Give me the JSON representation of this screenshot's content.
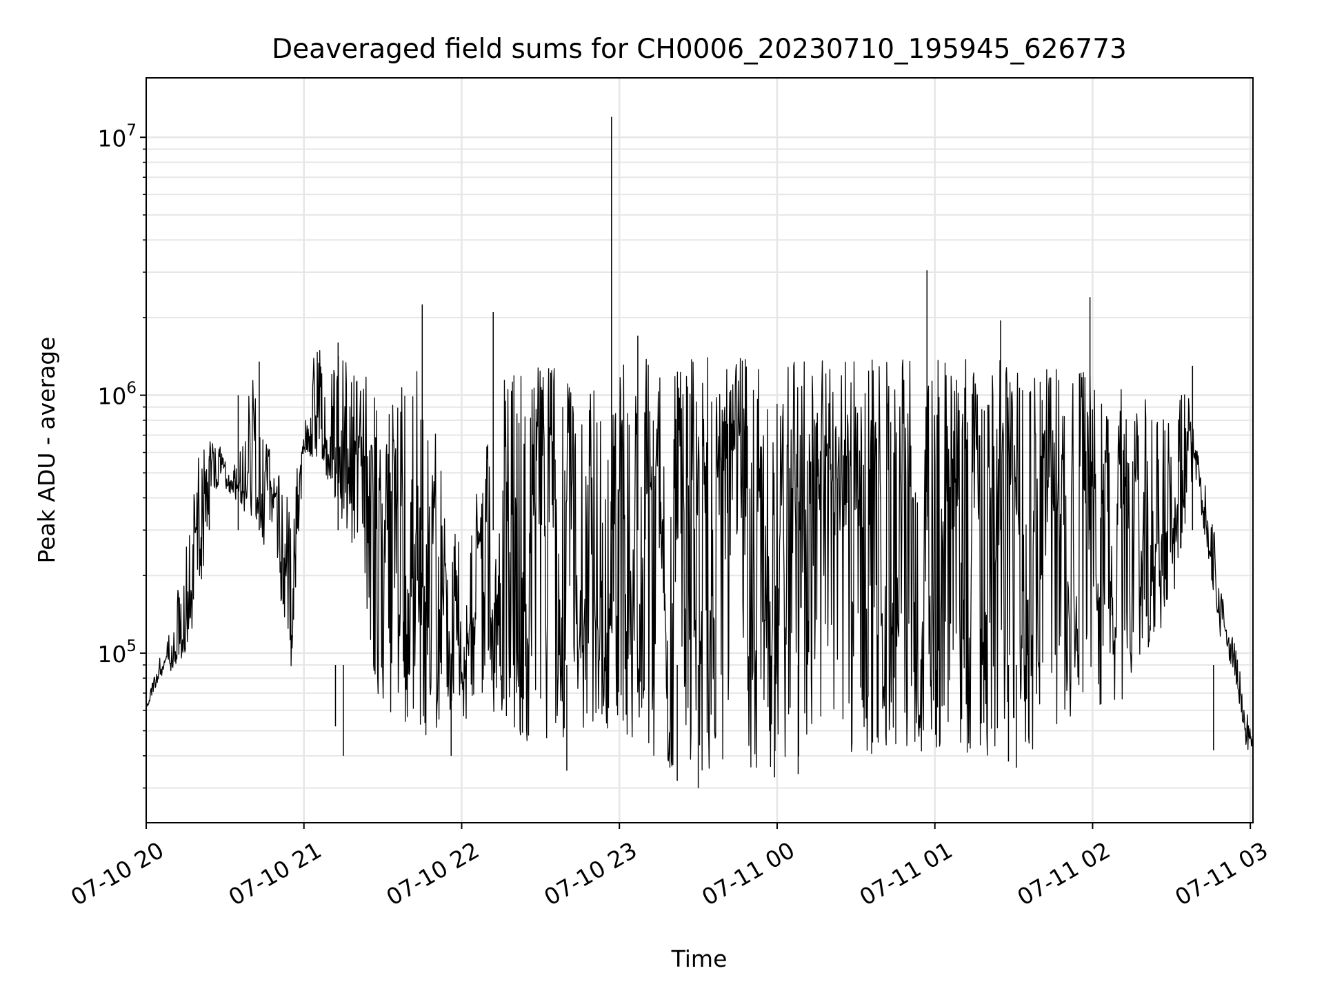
{
  "chart_data": {
    "type": "line",
    "title": "Deaveraged field sums for CH0006_20230710_195945_626773",
    "xlabel": "Time",
    "ylabel": "Peak ADU - average",
    "x_range": [
      "2023-07-10 20:00",
      "2023-07-11 03:01"
    ],
    "ylim": [
      22000,
      17000000
    ],
    "yscale": "log",
    "grid": true,
    "line_color": "#000000",
    "grid_color": "#e6e6e6",
    "x_ticks": [
      {
        "value": "2023-07-10 20:00",
        "label": "07-10 20"
      },
      {
        "value": "2023-07-10 21:00",
        "label": "07-10 21"
      },
      {
        "value": "2023-07-10 22:00",
        "label": "07-10 22"
      },
      {
        "value": "2023-07-10 23:00",
        "label": "07-10 23"
      },
      {
        "value": "2023-07-11 00:00",
        "label": "07-11 00"
      },
      {
        "value": "2023-07-11 01:00",
        "label": "07-11 01"
      },
      {
        "value": "2023-07-11 02:00",
        "label": "07-11 02"
      },
      {
        "value": "2023-07-11 03:00",
        "label": "07-11 03"
      }
    ],
    "y_ticks": [
      {
        "value": 100000,
        "base": "10",
        "exp": "5"
      },
      {
        "value": 1000000,
        "base": "10",
        "exp": "6"
      },
      {
        "value": 10000000,
        "base": "10",
        "exp": "7"
      }
    ],
    "series": [
      {
        "x": [
          "2023-07-10 20:00",
          "2023-07-10 20:05",
          "2023-07-10 20:10",
          "2023-07-10 20:15",
          "2023-07-10 20:20",
          "2023-07-10 20:25",
          "2023-07-10 20:30",
          "2023-07-10 20:35",
          "2023-07-10 20:40",
          "2023-07-10 20:45",
          "2023-07-10 20:50",
          "2023-07-10 20:55",
          "2023-07-10 21:00",
          "2023-07-10 21:05",
          "2023-07-10 21:10",
          "2023-07-10 21:15",
          "2023-07-10 21:20",
          "2023-07-10 21:25",
          "2023-07-10 21:30",
          "2023-07-10 21:35",
          "2023-07-10 21:40",
          "2023-07-10 21:45",
          "2023-07-10 21:50",
          "2023-07-10 21:55",
          "2023-07-10 22:00",
          "2023-07-10 22:05",
          "2023-07-10 22:10",
          "2023-07-10 22:15",
          "2023-07-10 22:20",
          "2023-07-10 22:25",
          "2023-07-10 22:30",
          "2023-07-10 22:35",
          "2023-07-10 22:40",
          "2023-07-10 22:45",
          "2023-07-10 22:50",
          "2023-07-10 22:55",
          "2023-07-10 23:00",
          "2023-07-10 23:05",
          "2023-07-10 23:10",
          "2023-07-10 23:15",
          "2023-07-10 23:20",
          "2023-07-10 23:25",
          "2023-07-10 23:30",
          "2023-07-10 23:35",
          "2023-07-10 23:40",
          "2023-07-10 23:45",
          "2023-07-10 23:50",
          "2023-07-10 23:55",
          "2023-07-11 00:00",
          "2023-07-11 00:05",
          "2023-07-11 00:10",
          "2023-07-11 00:15",
          "2023-07-11 00:20",
          "2023-07-11 00:25",
          "2023-07-11 00:30",
          "2023-07-11 00:35",
          "2023-07-11 00:40",
          "2023-07-11 00:45",
          "2023-07-11 00:50",
          "2023-07-11 00:55",
          "2023-07-11 01:00",
          "2023-07-11 01:05",
          "2023-07-11 01:10",
          "2023-07-11 01:15",
          "2023-07-11 01:20",
          "2023-07-11 01:25",
          "2023-07-11 01:30",
          "2023-07-11 01:35",
          "2023-07-11 01:40",
          "2023-07-11 01:45",
          "2023-07-11 01:50",
          "2023-07-11 01:55",
          "2023-07-11 02:00",
          "2023-07-11 02:05",
          "2023-07-11 02:10",
          "2023-07-11 02:15",
          "2023-07-11 02:20",
          "2023-07-11 02:25",
          "2023-07-11 02:30",
          "2023-07-11 02:35",
          "2023-07-11 02:40",
          "2023-07-11 02:45",
          "2023-07-11 02:50",
          "2023-07-11 02:55",
          "2023-07-11 03:00"
        ],
        "low": [
          60000,
          80000,
          85000,
          95000,
          150000,
          400000,
          420000,
          380000,
          300000,
          250000,
          200000,
          80000,
          600000,
          550000,
          450000,
          300000,
          200000,
          90000,
          60000,
          55000,
          50000,
          45000,
          45000,
          60000,
          55000,
          55000,
          60000,
          55000,
          50000,
          45000,
          45000,
          45000,
          45000,
          45000,
          45000,
          45000,
          45000,
          45000,
          35000,
          35000,
          35000,
          35000,
          35000,
          35000,
          35000,
          35000,
          35000,
          35000,
          35000,
          38000,
          40000,
          40000,
          40000,
          40000,
          40000,
          40000,
          40000,
          40000,
          40000,
          40000,
          40000,
          40000,
          40000,
          40000,
          40000,
          40000,
          40000,
          40000,
          45000,
          50000,
          55000,
          60000,
          60000,
          60000,
          60000,
          80000,
          100000,
          120000,
          150000,
          300000,
          400000,
          200000,
          90000,
          70000,
          35000
        ],
        "high": [
          65000,
          95000,
          150000,
          250000,
          600000,
          700000,
          600000,
          550000,
          1300000,
          700000,
          500000,
          400000,
          1300000,
          1500000,
          1500000,
          1400000,
          1300000,
          1200000,
          700000,
          1200000,
          1300000,
          1300000,
          900000,
          300000,
          400000,
          400000,
          900000,
          1300000,
          1300000,
          1300000,
          1300000,
          1300000,
          1300000,
          1400000,
          1300000,
          1400000,
          1400000,
          1400000,
          1400000,
          1400000,
          1400000,
          1400000,
          1400000,
          1400000,
          1400000,
          1400000,
          1400000,
          1400000,
          1400000,
          1400000,
          1400000,
          1400000,
          1400000,
          1400000,
          1400000,
          1400000,
          1400000,
          1400000,
          1400000,
          1400000,
          1400000,
          1400000,
          1400000,
          1400000,
          1400000,
          1400000,
          1400000,
          1400000,
          1300000,
          1300000,
          1300000,
          1300000,
          1200000,
          1200000,
          1200000,
          1200000,
          1000000,
          900000,
          800000,
          1200000,
          600000,
          400000,
          150000,
          100000,
          50000
        ]
      }
    ],
    "spikes": [
      {
        "x": "2023-07-10 20:24",
        "y": 580000
      },
      {
        "x": "2023-07-10 20:35",
        "y": 1000000
      },
      {
        "x": "2023-07-10 20:43",
        "y": 1350000
      },
      {
        "x": "2023-07-10 21:13",
        "y": 1600000
      },
      {
        "x": "2023-07-10 21:45",
        "y": 2250000
      },
      {
        "x": "2023-07-10 22:12",
        "y": 2100000
      },
      {
        "x": "2023-07-10 22:57",
        "y": 12000000
      },
      {
        "x": "2023-07-10 23:07",
        "y": 1700000
      },
      {
        "x": "2023-07-11 00:57",
        "y": 3050000
      },
      {
        "x": "2023-07-11 01:25",
        "y": 1950000
      },
      {
        "x": "2023-07-11 01:59",
        "y": 2400000
      },
      {
        "x": "2023-07-11 02:38",
        "y": 1300000
      }
    ],
    "dips": [
      {
        "x": "2023-07-10 21:15",
        "y": 40000
      },
      {
        "x": "2023-07-10 21:12",
        "y": 52000
      },
      {
        "x": "2023-07-10 21:56",
        "y": 40000
      },
      {
        "x": "2023-07-10 22:40",
        "y": 35000
      },
      {
        "x": "2023-07-10 23:22",
        "y": 32000
      },
      {
        "x": "2023-07-10 23:30",
        "y": 30000
      },
      {
        "x": "2023-07-10 23:59",
        "y": 33000
      },
      {
        "x": "2023-07-11 00:08",
        "y": 34000
      },
      {
        "x": "2023-07-11 01:28",
        "y": 38000
      },
      {
        "x": "2023-07-11 01:31",
        "y": 36000
      },
      {
        "x": "2023-07-11 02:46",
        "y": 42000
      },
      {
        "x": "2023-07-11 03:01",
        "y": 33000
      }
    ]
  }
}
